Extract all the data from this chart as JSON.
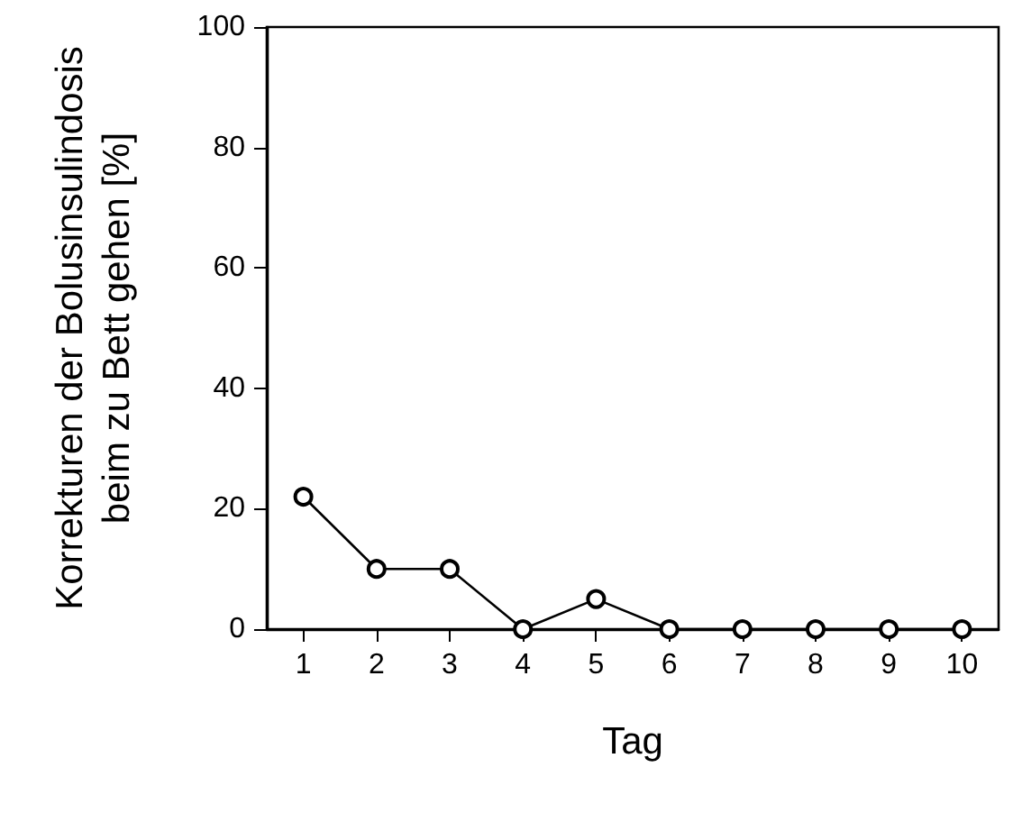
{
  "chart_data": {
    "type": "line",
    "xlabel": "Tag",
    "ylabel": "Korrekturen der Bolusinsulindosis\nbeim zu Bett gehen [%]",
    "categories": [
      "1",
      "2",
      "3",
      "4",
      "5",
      "6",
      "7",
      "8",
      "9",
      "10"
    ],
    "series": [
      {
        "color": "#000000",
        "values": [
          22,
          10,
          10,
          0,
          5,
          0,
          0,
          0,
          0,
          0
        ]
      }
    ],
    "ylim": [
      0,
      100
    ],
    "yticks": [
      0,
      20,
      40,
      60,
      80,
      100
    ],
    "marker": "circle",
    "line_style": "solid"
  }
}
